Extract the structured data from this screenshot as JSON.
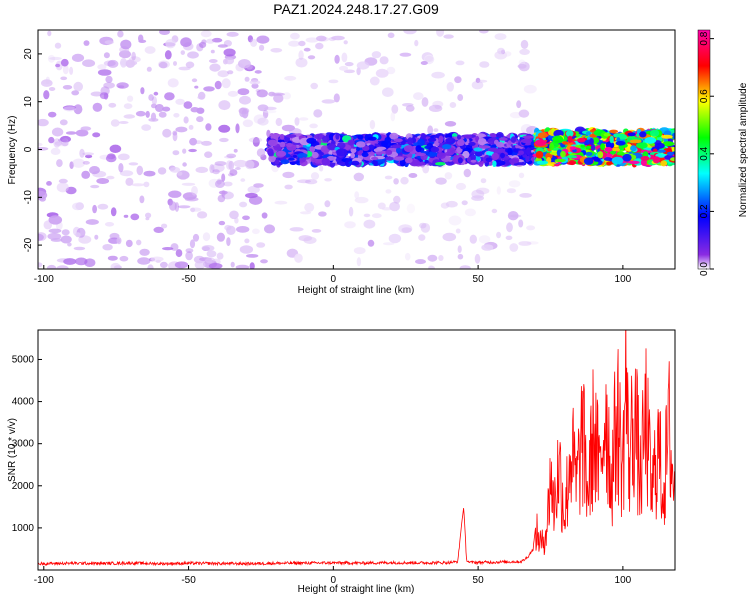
{
  "figure": {
    "title": "PAZ1.2024.248.17.27.G09"
  },
  "chart_data": [
    {
      "type": "heatmap",
      "title": "PAZ1.2024.248.17.27.G09",
      "xlabel": "Height of straight line (km)",
      "ylabel": "Frequency (Hz)",
      "xlim": [
        -102,
        118
      ],
      "ylim": [
        -25,
        25
      ],
      "xticks": [
        -100,
        -50,
        0,
        50,
        100
      ],
      "yticks": [
        -20,
        -10,
        0,
        10,
        20
      ],
      "grid": false,
      "colorbar": {
        "label": "Normalized spectral amplitude",
        "range": [
          0,
          0.83
        ],
        "ticks": [
          0.0,
          0.2,
          0.4,
          0.6,
          0.8
        ],
        "colormap": [
          "#ffffff",
          "#8a2be2",
          "#0000ff",
          "#00ffff",
          "#00ff00",
          "#ffff00",
          "#ff0000",
          "#ff00aa"
        ]
      },
      "regions": [
        {
          "x_range": [
            -102,
            -22
          ],
          "freq_range": [
            -25,
            25
          ],
          "amplitude": 0.05,
          "pattern": "dense broadband purple speckle"
        },
        {
          "x_range": [
            -22,
            70
          ],
          "freq_range": [
            -25,
            25
          ],
          "amplitude": 0.03,
          "pattern": "sparse light-purple speckle"
        },
        {
          "x_range": [
            -22,
            70
          ],
          "freq_range": [
            -3,
            3
          ],
          "amplitude": 0.15,
          "pattern": "concentrated band near 0 Hz"
        },
        {
          "x_range": [
            70,
            118
          ],
          "freq_range": [
            -3,
            4
          ],
          "amplitude": 0.45,
          "pattern": "strong narrow band near 0 Hz"
        }
      ],
      "peak": {
        "x": 95,
        "freq": 0,
        "amplitude": 0.83
      }
    },
    {
      "type": "line",
      "title": "",
      "xlabel": "Height of straight line (km)",
      "ylabel": "SNR (10 * v/v)",
      "xlim": [
        -102,
        118
      ],
      "ylim": [
        0,
        5700
      ],
      "xticks": [
        -100,
        -50,
        0,
        50,
        100
      ],
      "yticks": [
        1000,
        2000,
        3000,
        4000,
        5000
      ],
      "grid": false,
      "series": [
        {
          "color": "#ff0000",
          "x": [
            -102,
            -90,
            -80,
            -70,
            -60,
            -50,
            -40,
            -30,
            -20,
            -10,
            0,
            10,
            20,
            30,
            40,
            43,
            44,
            45,
            46,
            47,
            55,
            65,
            67,
            69,
            70,
            72,
            74,
            75,
            76,
            78,
            80,
            82,
            84,
            86,
            88,
            90,
            92,
            94,
            96,
            98,
            100,
            101,
            102,
            104,
            106,
            108,
            110,
            112,
            114,
            116,
            118
          ],
          "values": [
            150,
            160,
            155,
            165,
            150,
            160,
            155,
            150,
            160,
            165,
            170,
            165,
            175,
            170,
            175,
            200,
            900,
            1500,
            250,
            180,
            185,
            200,
            300,
            500,
            1100,
            700,
            1400,
            2900,
            1800,
            3000,
            1600,
            3500,
            2400,
            3900,
            2200,
            4100,
            2600,
            4900,
            2500,
            4500,
            2900,
            5700,
            3000,
            4600,
            2600,
            4300,
            2100,
            3600,
            2300,
            4000,
            2000
          ]
        }
      ],
      "noise_floor": {
        "x_range": [
          -102,
          70
        ],
        "value": 170
      }
    }
  ]
}
